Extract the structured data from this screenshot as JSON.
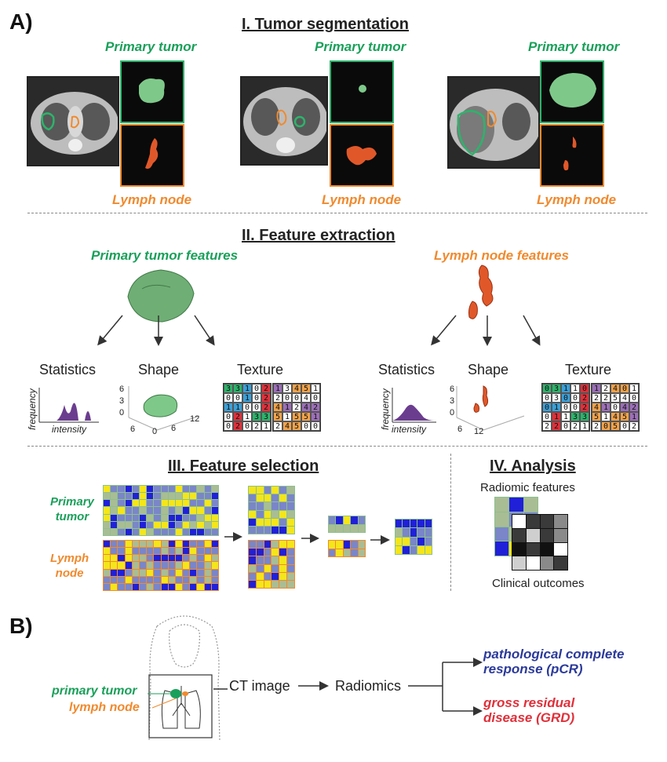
{
  "panel_a": {
    "letter": "A)",
    "section1_title": "I. Tumor segmentation",
    "section2_title": "II. Feature extraction",
    "section3_title": "III. Feature selection",
    "section4_title": "IV. Analysis",
    "primary_tumor_label": "Primary tumor",
    "lymph_node_label": "Lymph node",
    "primary_features_title": "Primary tumor features",
    "lymph_features_title": "Lymph node features",
    "statistics_label": "Statistics",
    "shape_label": "Shape",
    "texture_label": "Texture",
    "frequency_label": "frequency",
    "intensity_label": "intensity",
    "shape_axis_ticks": {
      "z": [
        "6",
        "3",
        "0"
      ],
      "x": [
        "6",
        "12"
      ],
      "y": [
        "12",
        "6"
      ],
      "origin": "0"
    },
    "texture_left_a": [
      [
        "3",
        "3",
        "1",
        "0",
        "2"
      ],
      [
        "0",
        "0",
        "1",
        "0",
        "2"
      ],
      [
        "1",
        "1",
        "0",
        "0",
        "2"
      ],
      [
        "0",
        "2",
        "1",
        "3",
        "3"
      ],
      [
        "0",
        "2",
        "0",
        "2",
        "1"
      ]
    ],
    "texture_left_b": [
      [
        "1",
        "3",
        "4",
        "5",
        "1"
      ],
      [
        "2",
        "0",
        "0",
        "4",
        "0"
      ],
      [
        "4",
        "1",
        "2",
        "4",
        "2"
      ],
      [
        "5",
        "1",
        "5",
        "5",
        "1"
      ],
      [
        "2",
        "4",
        "5",
        "0",
        "0"
      ]
    ],
    "texture_right_a": [
      [
        "0",
        "3",
        "1",
        "1",
        "0"
      ],
      [
        "0",
        "3",
        "0",
        "0",
        "2"
      ],
      [
        "0",
        "1",
        "0",
        "0",
        "2"
      ],
      [
        "0",
        "1",
        "1",
        "3",
        "3"
      ],
      [
        "2",
        "2",
        "0",
        "2",
        "1"
      ]
    ],
    "texture_right_b": [
      [
        "1",
        "2",
        "4",
        "0",
        "1"
      ],
      [
        "2",
        "2",
        "5",
        "4",
        "0"
      ],
      [
        "4",
        "1",
        "0",
        "4",
        "2"
      ],
      [
        "5",
        "1",
        "4",
        "5",
        "1"
      ],
      [
        "2",
        "0",
        "5",
        "0",
        "2"
      ]
    ],
    "fs_primary_label": "Primary\ntumor",
    "fs_lymph_label": "Lymph\nnode",
    "radiomic_features_label": "Radiomic features",
    "clinical_outcomes_label": "Clinical outcomes"
  },
  "panel_b": {
    "letter": "B)",
    "primary_tumor_label": "primary tumor",
    "lymph_node_label": "lymph node",
    "ct_image_label": "CT image",
    "radiomics_label": "Radiomics",
    "pcr_label": "pathological complete\nresponse (pCR)",
    "grd_label": "gross residual\ndisease (GRD)"
  },
  "colors": {
    "green": "#1aa05a",
    "orange": "#f08a2e",
    "blue_outcome": "#2b3a9a",
    "red_outcome": "#e0303a",
    "heat_blue": "#2020d8",
    "heat_periwinkle": "#7a86c8",
    "heat_sage": "#a9bd94",
    "heat_yellow": "#f4e61a"
  }
}
